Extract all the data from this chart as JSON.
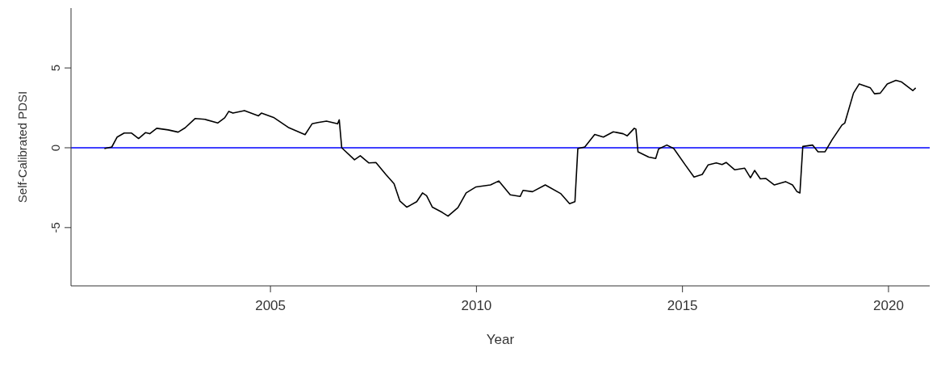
{
  "chart_data": {
    "type": "line",
    "xlabel": "Year",
    "ylabel": "Self-Calibrated PDSI",
    "xlim": [
      2000.16,
      2021.0
    ],
    "xticks": [
      2005,
      2010,
      2015,
      2020
    ],
    "ylim": [
      -8.65,
      8.75
    ],
    "yticks": [
      -5,
      0,
      5
    ],
    "grid": false,
    "legend": false,
    "marker": "none",
    "line_style": "solid",
    "ref_lines": [
      {
        "axis": "y",
        "value": 0,
        "color": "#0000ff"
      }
    ],
    "series": [
      {
        "color": "#000000",
        "x": [
          2000.97,
          2001.15,
          2001.28,
          2001.45,
          2001.63,
          2001.8,
          2001.97,
          2002.07,
          2002.24,
          2002.52,
          2002.76,
          2002.93,
          2003.17,
          2003.41,
          2003.72,
          2003.89,
          2003.99,
          2004.09,
          2004.37,
          2004.71,
          2004.78,
          2005.09,
          2005.43,
          2005.84,
          2006.01,
          2006.15,
          2006.36,
          2006.63,
          2006.67,
          2006.73,
          2007.04,
          2007.18,
          2007.39,
          2007.56,
          2007.8,
          2008.0,
          2008.14,
          2008.31,
          2008.55,
          2008.69,
          2008.79,
          2008.93,
          2009.17,
          2009.31,
          2009.55,
          2009.75,
          2009.99,
          2010.34,
          2010.54,
          2010.82,
          2011.06,
          2011.13,
          2011.36,
          2011.67,
          2012.05,
          2012.26,
          2012.39,
          2012.46,
          2012.63,
          2012.87,
          2013.08,
          2013.32,
          2013.56,
          2013.66,
          2013.83,
          2013.87,
          2013.92,
          2014.18,
          2014.35,
          2014.42,
          2014.62,
          2014.79,
          2015.07,
          2015.28,
          2015.48,
          2015.62,
          2015.82,
          2015.96,
          2016.06,
          2016.27,
          2016.51,
          2016.65,
          2016.75,
          2016.89,
          2017.02,
          2017.23,
          2017.5,
          2017.67,
          2017.78,
          2017.85,
          2017.92,
          2018.16,
          2018.29,
          2018.46,
          2018.63,
          2018.87,
          2018.94,
          2019.15,
          2019.29,
          2019.56,
          2019.66,
          2019.8,
          2019.97,
          2020.18,
          2020.32,
          2020.59,
          2020.66
        ],
        "values": [
          -0.05,
          0.05,
          0.67,
          0.92,
          0.92,
          0.58,
          0.95,
          0.88,
          1.22,
          1.12,
          0.98,
          1.25,
          1.83,
          1.78,
          1.55,
          1.88,
          2.28,
          2.17,
          2.33,
          2.0,
          2.17,
          1.88,
          1.28,
          0.82,
          1.5,
          1.58,
          1.67,
          1.5,
          1.75,
          0.0,
          -0.75,
          -0.5,
          -0.95,
          -0.92,
          -1.67,
          -2.25,
          -3.33,
          -3.72,
          -3.38,
          -2.83,
          -3.0,
          -3.72,
          -4.05,
          -4.28,
          -3.75,
          -2.83,
          -2.45,
          -2.33,
          -2.08,
          -2.95,
          -3.05,
          -2.67,
          -2.75,
          -2.33,
          -2.88,
          -3.5,
          -3.38,
          -0.05,
          0.05,
          0.83,
          0.67,
          1.0,
          0.88,
          0.75,
          1.22,
          1.17,
          -0.25,
          -0.58,
          -0.67,
          -0.08,
          0.17,
          -0.05,
          -1.08,
          -1.83,
          -1.67,
          -1.08,
          -0.95,
          -1.05,
          -0.92,
          -1.38,
          -1.28,
          -1.88,
          -1.42,
          -1.95,
          -1.92,
          -2.33,
          -2.12,
          -2.33,
          -2.75,
          -2.83,
          0.08,
          0.17,
          -0.25,
          -0.25,
          0.5,
          1.42,
          1.55,
          3.42,
          4.0,
          3.75,
          3.38,
          3.42,
          4.0,
          4.22,
          4.12,
          3.58,
          3.75
        ]
      }
    ]
  }
}
